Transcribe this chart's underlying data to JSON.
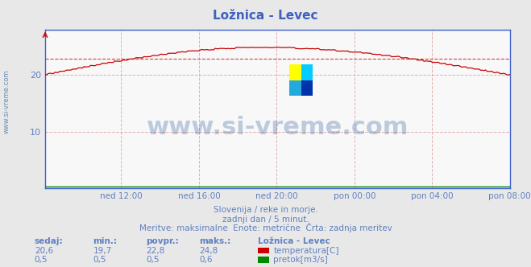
{
  "title": "Ložnica - Levec",
  "bg_color": "#e8e8e8",
  "plot_bg_color": "#f8f8f8",
  "grid_color_v": "#e0b0b0",
  "grid_color_h": "#e0b0b0",
  "y_min": 0,
  "y_max": 28,
  "y_ticks": [
    10,
    20
  ],
  "x_tick_labels": [
    "ned 12:00",
    "ned 16:00",
    "ned 20:00",
    "pon 00:00",
    "pon 04:00",
    "pon 08:00"
  ],
  "xlabel_color": "#6080c0",
  "ylabel_color": "#6080c0",
  "title_color": "#4060c0",
  "axis_color": "#4060d0",
  "temp_color": "#cc0000",
  "flow_color": "#008800",
  "avg_line_color": "#cc4444",
  "avg_line_value": 22.8,
  "temp_min": 19.7,
  "temp_max": 24.8,
  "temp_avg": 22.8,
  "temp_current": 20.6,
  "flow_min": 0.5,
  "flow_max": 0.6,
  "flow_avg": 0.5,
  "flow_current": 0.5,
  "watermark": "www.si-vreme.com",
  "watermark_color": "#3060a0",
  "subtitle1": "Slovenija / reke in morje.",
  "subtitle2": "zadnji dan / 5 minut.",
  "subtitle3": "Meritve: maksimalne  Enote: metrične  Črta: zadnja meritev",
  "footer_color": "#6080c0",
  "n_points": 288
}
